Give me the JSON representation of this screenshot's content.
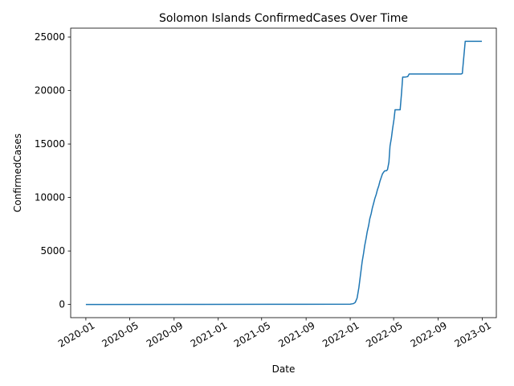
{
  "chart_data": {
    "type": "line",
    "title": "Solomon Islands  ConfirmedCases Over Time",
    "xlabel": "Date",
    "ylabel": "ConfirmedCases",
    "x_ticks": [
      "2020-01",
      "2020-05",
      "2020-09",
      "2021-01",
      "2021-05",
      "2021-09",
      "2022-01",
      "2022-05",
      "2022-09",
      "2023-01"
    ],
    "y_ticks": [
      0,
      5000,
      10000,
      15000,
      20000,
      25000
    ],
    "xlim": [
      "2019-11-20",
      "2023-02-09"
    ],
    "ylim": [
      -1230,
      25830
    ],
    "grid": false,
    "legend": "none",
    "series": [
      {
        "color": "#1f77b4",
        "x": [
          "2020-01-01",
          "2020-10-01",
          "2021-06-01",
          "2022-01-01",
          "2022-01-10",
          "2022-01-15",
          "2022-01-20",
          "2022-01-22",
          "2022-01-25",
          "2022-01-28",
          "2022-01-31",
          "2022-02-03",
          "2022-02-07",
          "2022-02-10",
          "2022-02-14",
          "2022-02-17",
          "2022-02-21",
          "2022-02-24",
          "2022-02-28",
          "2022-03-03",
          "2022-03-07",
          "2022-03-10",
          "2022-03-14",
          "2022-03-17",
          "2022-03-21",
          "2022-03-24",
          "2022-03-28",
          "2022-03-31",
          "2022-04-04",
          "2022-04-07",
          "2022-04-11",
          "2022-04-14",
          "2022-04-18",
          "2022-04-21",
          "2022-04-25",
          "2022-04-28",
          "2022-05-02",
          "2022-05-05",
          "2022-05-09",
          "2022-05-12",
          "2022-05-16",
          "2022-05-19",
          "2022-05-23",
          "2022-05-26",
          "2022-06-01",
          "2022-06-09",
          "2022-06-13",
          "2022-06-20",
          "2022-07-01",
          "2022-08-01",
          "2022-09-01",
          "2022-10-01",
          "2022-11-01",
          "2022-11-04",
          "2022-11-07",
          "2022-11-08",
          "2022-11-15",
          "2022-12-01",
          "2022-12-31"
        ],
        "y": [
          0,
          10,
          20,
          30,
          80,
          200,
          600,
          1000,
          1600,
          2400,
          3200,
          4000,
          4800,
          5500,
          6200,
          6800,
          7400,
          8000,
          8500,
          9000,
          9500,
          9900,
          10300,
          10700,
          11100,
          11500,
          11900,
          12200,
          12400,
          12500,
          12500,
          12600,
          13300,
          14800,
          15600,
          16400,
          17300,
          18200,
          18200,
          18200,
          18200,
          18200,
          19800,
          21250,
          21250,
          21300,
          21550,
          21550,
          21550,
          21550,
          21550,
          21550,
          21550,
          21550,
          21600,
          22000,
          24600,
          24600,
          24600
        ]
      }
    ]
  }
}
